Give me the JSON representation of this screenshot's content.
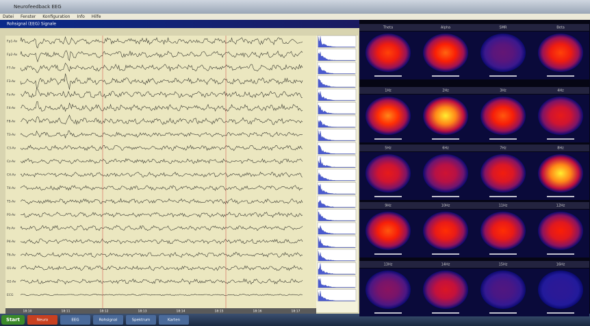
{
  "window": {
    "title": "Neurofeedback EEG",
    "menu": [
      "Datei",
      "Fenster",
      "Konfiguration",
      "Info",
      "Hilfe"
    ]
  },
  "eeg_panel": {
    "title": "Rohsignal (EEG) Signale",
    "channels": [
      "Fp1-Av",
      "Fp2-Av",
      "F7-Av",
      "F3-Av",
      "Fz-Av",
      "F4-Av",
      "F8-Av",
      "T3-Av",
      "C3-Av",
      "Cz-Av",
      "C4-Av",
      "T4-Av",
      "T5-Av",
      "P3-Av",
      "Pz-Av",
      "P4-Av",
      "T6-Av",
      "O1-Av",
      "O2-Av",
      "ECG"
    ],
    "time_labels": [
      "18:10",
      "18:11",
      "18:12",
      "18:13",
      "18:14",
      "18:15",
      "18:16",
      "18:17"
    ]
  },
  "maps": [
    "Theta",
    "Alpha",
    "SMR",
    "Beta",
    "1Hz",
    "2Hz",
    "3Hz",
    "4Hz",
    "5Hz",
    "6Hz",
    "7Hz",
    "8Hz",
    "9Hz",
    "10Hz",
    "11Hz",
    "12Hz",
    "13Hz",
    "14Hz",
    "15Hz",
    "16Hz"
  ],
  "taskbar": {
    "start": "Start",
    "items": [
      "Neuro",
      "EEG",
      "Rohsignal",
      "Spektrum",
      "Karten"
    ]
  }
}
